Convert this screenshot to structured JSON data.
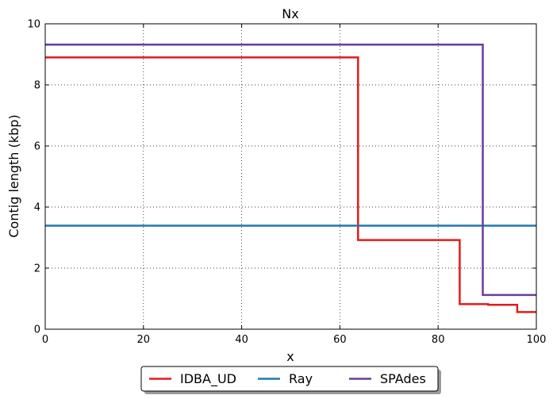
{
  "chart_data": {
    "type": "line",
    "title": "Nx",
    "xlabel": "x",
    "ylabel": "Contig length  (kbp)",
    "xlim": [
      0,
      100
    ],
    "ylim": [
      0,
      10
    ],
    "xticks": [
      "0",
      "20",
      "40",
      "60",
      "80",
      "100"
    ],
    "yticks": [
      "0",
      "2",
      "4",
      "6",
      "8",
      "10"
    ],
    "grid": true,
    "legend_position": "bottom-center",
    "series": [
      {
        "name": "IDBA_UD",
        "color": "#e31a1c",
        "x": [
          0,
          63.7,
          63.7,
          84.4,
          84.4,
          90.2,
          90.2,
          96.1,
          96.1,
          100
        ],
        "y": [
          8.9,
          8.9,
          2.92,
          2.92,
          0.82,
          0.82,
          0.8,
          0.8,
          0.56,
          0.56
        ]
      },
      {
        "name": "Ray",
        "color": "#1f78b4",
        "x": [
          0,
          100
        ],
        "y": [
          3.39,
          3.39
        ]
      },
      {
        "name": "SPAdes",
        "color": "#6a3d9a",
        "x": [
          0,
          89.1,
          89.1,
          100
        ],
        "y": [
          9.32,
          9.32,
          1.12,
          1.12
        ]
      }
    ]
  }
}
